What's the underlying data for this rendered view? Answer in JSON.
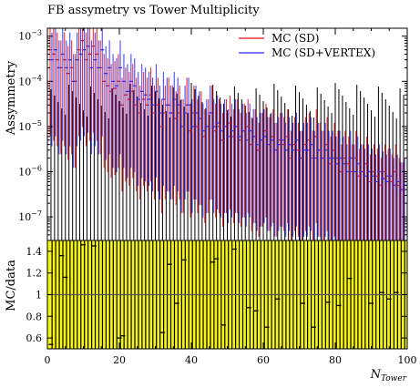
{
  "title": "FB assymetry vs Tower Multiplicity",
  "colors": {
    "sd": "#e01010",
    "sd_vertex": "#2b2bff",
    "data": "#000000",
    "ratio_fill": "#f4f41a",
    "unity_line": "#555555"
  },
  "chart_data": [
    {
      "type": "scatter",
      "title": "FB assymetry vs Tower Multiplicity",
      "ylabel": "Assymmetry",
      "xlabel": "",
      "yscale": "log",
      "ylim": [
        3e-08,
        0.0015
      ],
      "xlim": [
        0,
        100
      ],
      "yticks": [
        "10^{-7}",
        "10^{-6}",
        "10^{-5}",
        "10^{-4}",
        "10^{-3}"
      ],
      "legend": {
        "position": "top-right",
        "entries": [
          {
            "label": "MC (SD)",
            "color": "#e01010"
          },
          {
            "label": "MC (SD+VERTEX)",
            "color": "#2b2bff"
          }
        ]
      },
      "x": [
        1,
        2,
        3,
        4,
        5,
        6,
        7,
        8,
        9,
        10,
        11,
        12,
        13,
        14,
        15,
        16,
        17,
        18,
        19,
        20,
        21,
        22,
        23,
        24,
        25,
        26,
        27,
        28,
        29,
        30,
        31,
        32,
        33,
        34,
        35,
        36,
        37,
        38,
        39,
        40,
        41,
        42,
        43,
        44,
        45,
        46,
        47,
        48,
        49,
        50,
        51,
        52,
        53,
        54,
        55,
        56,
        57,
        58,
        59,
        60,
        61,
        62,
        63,
        64,
        65,
        66,
        67,
        68,
        69,
        70,
        71,
        72,
        73,
        74,
        75,
        76,
        77,
        78,
        79,
        80,
        81,
        82,
        83,
        84,
        85,
        86,
        87,
        88,
        89,
        90,
        91,
        92,
        93,
        94,
        95,
        96,
        97,
        98,
        99
      ],
      "series": [
        {
          "name": "MC (SD)",
          "values": [
            0.0005,
            0.0004,
            0.0003,
            0.0002,
            0.0003,
            0.00015,
            0.0002,
            0.0001,
            0.0005,
            0.0008,
            0.0003,
            0.0004,
            0.0006,
            0.0004,
            0.0002,
            0.0001,
            8e-05,
            6e-05,
            7e-05,
            0.0001,
            3e-05,
            5e-05,
            4e-05,
            6e-05,
            3e-05,
            2e-05,
            4e-05,
            3e-05,
            5e-05,
            2e-05,
            3e-05,
            1e-05,
            2e-05,
            3e-05,
            2e-05,
            1.5e-05,
            2e-05,
            1e-05,
            3e-05,
            8e-06,
            2e-05,
            1e-05,
            1.5e-05,
            6e-06,
            1e-05,
            2e-05,
            8e-06,
            1e-05,
            5e-06,
            1e-05,
            1.2e-05,
            6e-06,
            1e-05,
            5e-06,
            8e-06,
            1e-05,
            4e-06,
            6e-06,
            3e-06,
            5e-06,
            8e-06,
            4e-06,
            6e-06,
            3e-06,
            5e-06,
            4e-06,
            6e-06,
            2e-06,
            4e-06,
            3e-06,
            2e-06,
            4e-06,
            5e-06,
            2e-06,
            6e-06,
            3e-06,
            2e-06,
            4e-06,
            1.5e-06,
            3e-06,
            2e-06,
            1e-06,
            2e-06,
            1.5e-06,
            1e-06,
            2e-06,
            8e-07,
            1e-06,
            1.5e-06,
            6e-07,
            1e-06,
            8e-07,
            5e-07,
            1e-06,
            8e-07,
            6e-07,
            1e-06,
            5e-07,
            4e-07
          ]
        },
        {
          "name": "MC (SD+VERTEX)",
          "values": [
            0.0003,
            0.0005,
            0.0002,
            0.0004,
            0.0002,
            0.0003,
            0.0001,
            0.0003,
            0.0004,
            0.0005,
            0.0006,
            0.0002,
            0.0003,
            0.0002,
            0.0005,
            0.00015,
            0.0002,
            0.0001,
            8e-05,
            0.0002,
            0.0001,
            6e-05,
            0.0001,
            8e-05,
            4e-05,
            6e-05,
            5e-05,
            4e-05,
            3e-05,
            6e-05,
            2e-05,
            4e-05,
            3e-05,
            2e-05,
            4e-05,
            3e-05,
            1e-05,
            2e-05,
            3e-05,
            1e-05,
            2e-05,
            1.5e-05,
            8e-06,
            1e-05,
            2e-05,
            1e-05,
            1.2e-05,
            8e-06,
            1e-05,
            6e-06,
            8e-06,
            1e-05,
            6e-06,
            8e-06,
            5e-06,
            8e-06,
            6e-06,
            4e-06,
            5e-06,
            6e-06,
            4e-06,
            5e-06,
            3e-06,
            4e-06,
            5e-06,
            3e-06,
            4e-06,
            3e-06,
            5e-06,
            2e-06,
            3e-06,
            3e-06,
            4e-06,
            2e-06,
            3e-06,
            2e-06,
            3e-06,
            2e-06,
            2e-06,
            1.5e-06,
            2e-06,
            1.5e-06,
            1e-06,
            2e-06,
            1e-06,
            1.5e-06,
            1e-06,
            8e-07,
            1e-06,
            8e-07,
            6e-07,
            1e-06,
            7e-07,
            6e-07,
            8e-07,
            5e-07,
            6e-07,
            4e-07,
            5e-07
          ]
        }
      ]
    },
    {
      "type": "scatter",
      "xlabel": "N_{Tower}",
      "ylabel": "MC/data",
      "xlim": [
        0,
        100
      ],
      "ylim": [
        0.5,
        1.5
      ],
      "xticks": [
        0,
        20,
        40,
        60,
        80,
        100
      ],
      "yticks": [
        0.6,
        0.8,
        1,
        1.2,
        1.4
      ],
      "reference_line": 1,
      "x": [
        1,
        4,
        5,
        10,
        13,
        20,
        21,
        32,
        34,
        36,
        38,
        46,
        47,
        49,
        52,
        56,
        58,
        61,
        64,
        71,
        74,
        78,
        81,
        84,
        90,
        93,
        95,
        97
      ],
      "values": [
        0.54,
        1.36,
        1.16,
        1.46,
        1.45,
        0.6,
        0.62,
        0.65,
        1.28,
        0.92,
        1.32,
        1.3,
        1.33,
        0.72,
        1.42,
        0.88,
        0.85,
        0.7,
        0.96,
        0.92,
        0.7,
        0.93,
        0.9,
        1.15,
        0.92,
        1.02,
        0.96,
        1.02
      ]
    }
  ]
}
